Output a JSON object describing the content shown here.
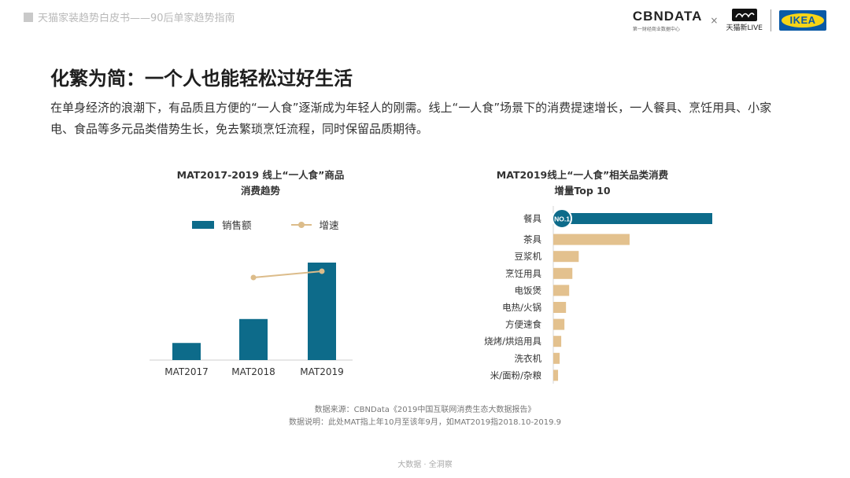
{
  "header": {
    "report_title": "天猫家装趋势白皮书——90后单家趋势指南",
    "logo_cbndata": "CBNDATA",
    "logo_cbndata_sub": "第一财经商业数据中心",
    "logo_times": "×",
    "logo_tmall": "天猫新LIVE",
    "logo_ikea": "IKEA"
  },
  "slide": {
    "title": "化繁为简：一个人也能轻松过好生活",
    "intro": "在单身经济的浪潮下，有品质且方便的“一人食”逐渐成为年轻人的刚需。线上“一人食”场景下的消费提速增长，一人餐具、烹饪用具、小家电、食品等多元品类借势生长，免去繁琐烹饪流程，同时保留品质期待。"
  },
  "chart_data": [
    {
      "type": "bar",
      "title_line1": "MAT2017-2019 线上“一人食”商品",
      "title_line2": "消费趋势",
      "categories": [
        "MAT2017",
        "MAT2018",
        "MAT2019"
      ],
      "series": [
        {
          "name": "销售额",
          "type": "bar",
          "color": "#0d6b8a",
          "values": [
            1.0,
            2.4,
            5.7
          ]
        },
        {
          "name": "增速",
          "type": "line",
          "color": "#dcbc8a",
          "values": [
            null,
            1.4,
            1.4
          ]
        }
      ],
      "legend": "top",
      "grid": false
    },
    {
      "type": "bar",
      "orientation": "horizontal",
      "title_line1": "MAT2019线上“一人食”相关品类消费",
      "title_line2": "增量Top 10",
      "badge": "NO.1",
      "categories": [
        "餐具",
        "茶具",
        "豆浆机",
        "烹饪用具",
        "电饭煲",
        "电热/火锅",
        "方便速食",
        "烧烤/烘焙用具",
        "洗衣机",
        "米/面粉/杂粮"
      ],
      "values": [
        100,
        48,
        16,
        12,
        10,
        8,
        7,
        5,
        4,
        3
      ],
      "colors": {
        "top": "#0d6b8a",
        "rest": "#e3c18e"
      },
      "grid": false
    }
  ],
  "source": {
    "line1": "数据来源：CBNData《2019中国互联网消费生态大数据报告》",
    "line2": "数据说明：此处MAT指上年10月至该年9月，如MAT2019指2018.10-2019.9"
  },
  "footer": "大数据 · 全洞察"
}
